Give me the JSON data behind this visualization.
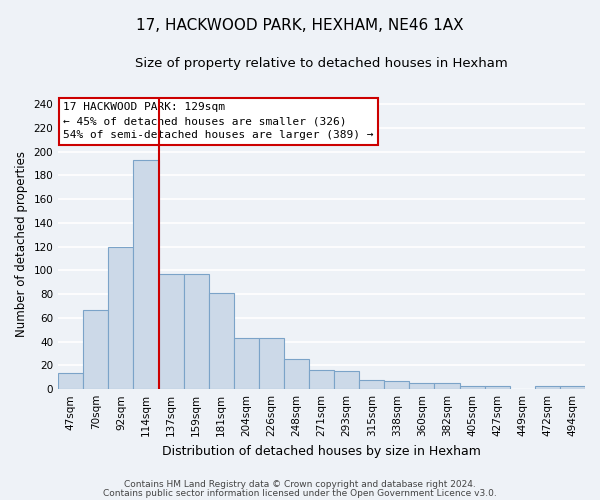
{
  "title": "17, HACKWOOD PARK, HEXHAM, NE46 1AX",
  "subtitle": "Size of property relative to detached houses in Hexham",
  "xlabel": "Distribution of detached houses by size in Hexham",
  "ylabel": "Number of detached properties",
  "bar_labels": [
    "47sqm",
    "70sqm",
    "92sqm",
    "114sqm",
    "137sqm",
    "159sqm",
    "181sqm",
    "204sqm",
    "226sqm",
    "248sqm",
    "271sqm",
    "293sqm",
    "315sqm",
    "338sqm",
    "360sqm",
    "382sqm",
    "405sqm",
    "427sqm",
    "449sqm",
    "472sqm",
    "494sqm"
  ],
  "bar_values": [
    14,
    67,
    120,
    193,
    97,
    97,
    81,
    43,
    43,
    25,
    16,
    15,
    8,
    7,
    5,
    5,
    3,
    3,
    0,
    3,
    3
  ],
  "bar_color": "#ccd9e8",
  "bar_edge_color": "#7ba3c8",
  "vline_color": "#cc0000",
  "vline_position": 3.5,
  "ylim": [
    0,
    245
  ],
  "yticks": [
    0,
    20,
    40,
    60,
    80,
    100,
    120,
    140,
    160,
    180,
    200,
    220,
    240
  ],
  "annotation_title": "17 HACKWOOD PARK: 129sqm",
  "annotation_line1": "← 45% of detached houses are smaller (326)",
  "annotation_line2": "54% of semi-detached houses are larger (389) →",
  "annotation_box_color": "#ffffff",
  "annotation_box_edge": "#cc0000",
  "footer1": "Contains HM Land Registry data © Crown copyright and database right 2024.",
  "footer2": "Contains public sector information licensed under the Open Government Licence v3.0.",
  "bg_color": "#eef2f7",
  "plot_bg_color": "#eef2f7",
  "grid_color": "#ffffff",
  "title_fontsize": 11,
  "subtitle_fontsize": 9.5,
  "xlabel_fontsize": 9,
  "ylabel_fontsize": 8.5,
  "tick_fontsize": 7.5,
  "annotation_fontsize": 8,
  "footer_fontsize": 6.5
}
